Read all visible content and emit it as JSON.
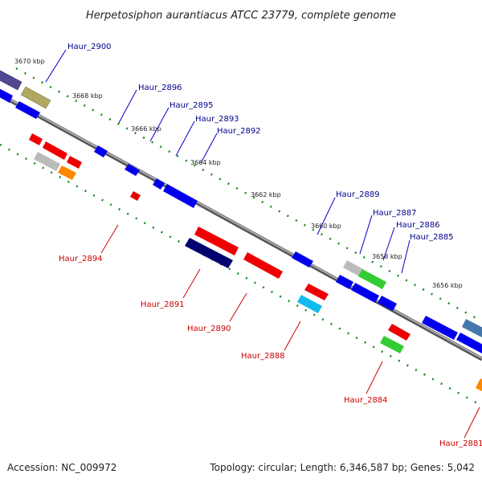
{
  "title": "Herpetosiphon aurantiacus ATCC 23779, complete genome",
  "footer": {
    "accession": "Accession: NC_009972",
    "topology": "Topology: circular; Length: 6,346,587 bp; Genes: 5,042"
  },
  "ticks": [
    "3670 kbp",
    "3668 kbp",
    "3666 kbp",
    "3664 kbp",
    "3662 kbp",
    "3660 kbp",
    "3658 kbp",
    "3656 kbp"
  ],
  "labels_forward": [
    "Haur_2900",
    "Haur_2896",
    "Haur_2895",
    "Haur_2893",
    "Haur_2892",
    "Haur_2889",
    "Haur_2887",
    "Haur_2886",
    "Haur_2885"
  ],
  "labels_reverse": [
    "Haur_2894",
    "Haur_2891",
    "Haur_2890",
    "Haur_2888",
    "Haur_2884",
    "Haur_2881"
  ],
  "colors": {
    "backbone": "#7a7a7a",
    "ruler": "#1a8a1a",
    "blue": "#0000ee",
    "red": "#ee0000",
    "navy": "#000070",
    "olive": "#b0a860",
    "purple": "#504890",
    "grey": "#b8b8b8",
    "green": "#33cc33",
    "cyan": "#11bbee",
    "orange": "#ff8800",
    "steel": "#4477aa",
    "fwd_label": "#00008b",
    "rev_label": "#cc0000"
  }
}
